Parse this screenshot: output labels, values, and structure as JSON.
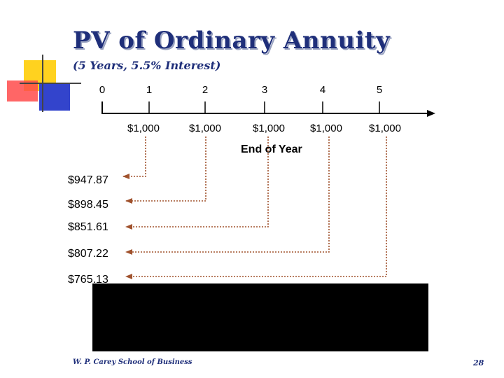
{
  "slide": {
    "title": "PV of Ordinary Annuity",
    "subtitle": "(5 Years, 5.5% Interest)",
    "footer": "W. P. Carey School of Business",
    "slide_number": "28",
    "axis_caption": "End of Year"
  },
  "timeline": {
    "periods": [
      "0",
      "1",
      "2",
      "3",
      "4",
      "5"
    ],
    "cash_flows": [
      "$1,000",
      "$1,000",
      "$1,000",
      "$1,000",
      "$1,000"
    ]
  },
  "present_values": [
    "$947.87",
    "$898.45",
    "$851.61",
    "$807.22",
    "$765.13"
  ],
  "colors": {
    "title": "#1f2f7a",
    "arrow": "#a0522d",
    "deco_yellow": "#ffd21f",
    "deco_blue": "#3344cc",
    "deco_red": "#ff3333"
  }
}
